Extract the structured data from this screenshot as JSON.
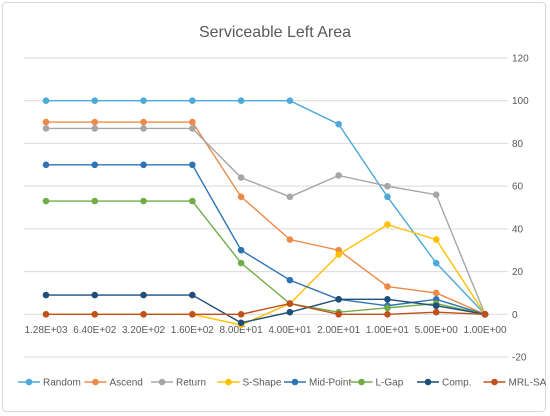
{
  "chart_data": {
    "type": "line",
    "title": "Serviceable Left Area",
    "categories": [
      "1.28E+03",
      "6.40E+02",
      "3.20E+02",
      "1.60E+02",
      "8.00E+01",
      "4.00E+01",
      "2.00E+01",
      "1.00E+01",
      "5.00E+00",
      "1.00E+00"
    ],
    "ylim": [
      -20,
      120
    ],
    "yticks": [
      "120",
      "100",
      "80",
      "60",
      "40",
      "20",
      "0",
      "-20"
    ],
    "ytick_values": [
      120,
      100,
      80,
      60,
      40,
      20,
      0,
      -20
    ],
    "grid": true,
    "legend_position": "bottom",
    "series": [
      {
        "name": "Random",
        "color": "#4baad9",
        "values": [
          100,
          100,
          100,
          100,
          100,
          100,
          89,
          55,
          24,
          0
        ]
      },
      {
        "name": "Ascend",
        "color": "#ed8a48",
        "values": [
          90,
          90,
          90,
          90,
          55,
          35,
          30,
          13,
          10,
          0
        ]
      },
      {
        "name": "Return",
        "color": "#a6a6a6",
        "values": [
          87,
          87,
          87,
          87,
          64,
          55,
          65,
          60,
          56,
          0
        ]
      },
      {
        "name": "S-Shape",
        "color": "#ffc000",
        "values": [
          0,
          0,
          0,
          0,
          -5,
          5,
          28,
          42,
          35,
          0
        ]
      },
      {
        "name": "Mid-Point",
        "color": "#2e74b5",
        "values": [
          70,
          70,
          70,
          70,
          30,
          16,
          7,
          4,
          7,
          0
        ]
      },
      {
        "name": "L-Gap",
        "color": "#70ad47",
        "values": [
          53,
          53,
          53,
          53,
          24,
          5,
          1,
          3,
          5,
          0
        ]
      },
      {
        "name": "Comp.",
        "color": "#1f4e79",
        "values": [
          9,
          9,
          9,
          9,
          -4,
          1,
          7,
          7,
          4,
          0
        ]
      },
      {
        "name": "MRL-SA",
        "color": "#c0501c",
        "values": [
          0,
          0,
          0,
          0,
          0,
          5,
          0,
          0,
          1,
          0
        ]
      }
    ]
  }
}
